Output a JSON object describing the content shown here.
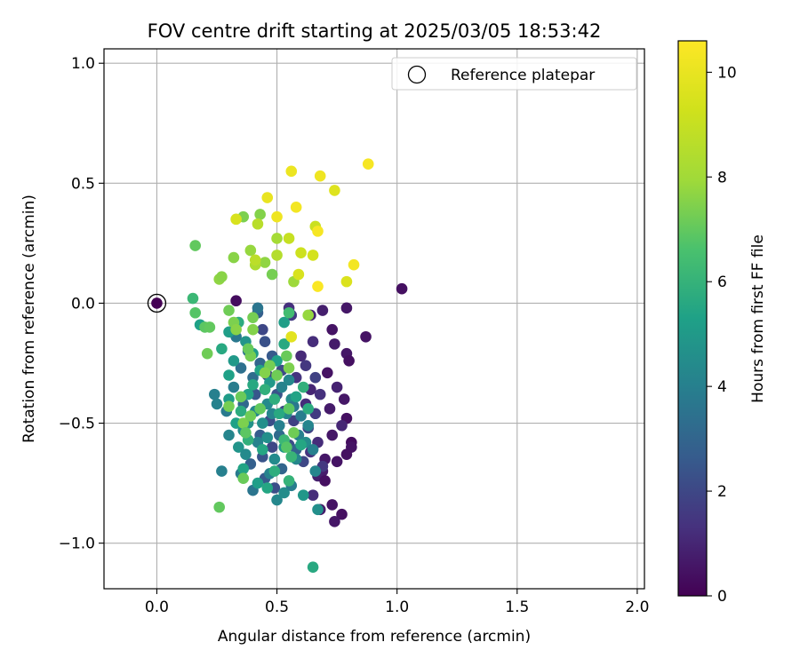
{
  "chart_data": {
    "type": "scatter",
    "title": "FOV centre drift starting at 2025/03/05 18:53:42",
    "xlabel": "Angular distance from reference (arcmin)",
    "ylabel": "Rotation from reference (arcmin)",
    "xlim": [
      -0.22,
      2.03
    ],
    "ylim": [
      -1.19,
      1.06
    ],
    "xticks": [
      0.0,
      0.5,
      1.0,
      1.5,
      2.0
    ],
    "xtick_labels": [
      "0.0",
      "0.5",
      "1.0",
      "1.5",
      "2.0"
    ],
    "yticks": [
      -1.0,
      -0.5,
      0.0,
      0.5,
      1.0
    ],
    "ytick_labels": [
      "−1.0",
      "−0.5",
      "0.0",
      "0.5",
      "1.0"
    ],
    "grid": true,
    "legend": {
      "position": "top-right",
      "entries": [
        "Reference platepar"
      ]
    },
    "reference_point": {
      "x": 0.0,
      "y": 0.0,
      "label": "Reference platepar"
    },
    "colorbar": {
      "label": "Hours from first FF file",
      "colormap": "viridis",
      "range": [
        0,
        10.6
      ],
      "ticks": [
        0,
        2,
        4,
        6,
        8,
        10
      ],
      "tick_labels": [
        "0",
        "2",
        "4",
        "6",
        "8",
        "10"
      ]
    },
    "points": [
      {
        "x": 0.33,
        "y": 0.01,
        "c": 0.3
      },
      {
        "x": 1.02,
        "y": 0.06,
        "c": 0.4
      },
      {
        "x": 0.79,
        "y": -0.02,
        "c": 0.6
      },
      {
        "x": 0.87,
        "y": -0.14,
        "c": 0.5
      },
      {
        "x": 0.69,
        "y": -0.03,
        "c": 0.8
      },
      {
        "x": 0.73,
        "y": -0.11,
        "c": 0.5
      },
      {
        "x": 0.74,
        "y": -0.17,
        "c": 0.7
      },
      {
        "x": 0.79,
        "y": -0.21,
        "c": 0.6
      },
      {
        "x": 0.8,
        "y": -0.24,
        "c": 0.4
      },
      {
        "x": 0.71,
        "y": -0.29,
        "c": 0.5
      },
      {
        "x": 0.75,
        "y": -0.35,
        "c": 0.9
      },
      {
        "x": 0.78,
        "y": -0.4,
        "c": 0.6
      },
      {
        "x": 0.72,
        "y": -0.44,
        "c": 0.7
      },
      {
        "x": 0.79,
        "y": -0.48,
        "c": 0.4
      },
      {
        "x": 0.77,
        "y": -0.51,
        "c": 1.0
      },
      {
        "x": 0.73,
        "y": -0.55,
        "c": 0.6
      },
      {
        "x": 0.81,
        "y": -0.58,
        "c": 0.3
      },
      {
        "x": 0.81,
        "y": -0.6,
        "c": 0.5
      },
      {
        "x": 0.79,
        "y": -0.63,
        "c": 0.4
      },
      {
        "x": 0.7,
        "y": -0.65,
        "c": 0.6
      },
      {
        "x": 0.75,
        "y": -0.66,
        "c": 0.5
      },
      {
        "x": 0.69,
        "y": -0.7,
        "c": 0.7
      },
      {
        "x": 0.67,
        "y": -0.72,
        "c": 0.8
      },
      {
        "x": 0.7,
        "y": -0.74,
        "c": 0.4
      },
      {
        "x": 0.65,
        "y": -0.8,
        "c": 1.2
      },
      {
        "x": 0.73,
        "y": -0.84,
        "c": 0.5
      },
      {
        "x": 0.77,
        "y": -0.88,
        "c": 0.4
      },
      {
        "x": 0.74,
        "y": -0.91,
        "c": 0.6
      },
      {
        "x": 0.68,
        "y": -0.86,
        "c": 0.7
      },
      {
        "x": 0.62,
        "y": -0.42,
        "c": 1.2
      },
      {
        "x": 0.64,
        "y": -0.36,
        "c": 1.0
      },
      {
        "x": 0.58,
        "y": -0.31,
        "c": 1.4
      },
      {
        "x": 0.6,
        "y": -0.22,
        "c": 1.1
      },
      {
        "x": 0.55,
        "y": -0.02,
        "c": 1.3
      },
      {
        "x": 0.56,
        "y": -0.05,
        "c": 1.6
      },
      {
        "x": 0.64,
        "y": -0.05,
        "c": 0.9
      },
      {
        "x": 0.65,
        "y": -0.16,
        "c": 1.2
      },
      {
        "x": 0.62,
        "y": -0.26,
        "c": 1.5
      },
      {
        "x": 0.66,
        "y": -0.31,
        "c": 1.8
      },
      {
        "x": 0.68,
        "y": -0.38,
        "c": 1.3
      },
      {
        "x": 0.66,
        "y": -0.46,
        "c": 1.6
      },
      {
        "x": 0.63,
        "y": -0.52,
        "c": 1.9
      },
      {
        "x": 0.67,
        "y": -0.58,
        "c": 1.2
      },
      {
        "x": 0.64,
        "y": -0.62,
        "c": 1.4
      },
      {
        "x": 0.61,
        "y": -0.66,
        "c": 2.0
      },
      {
        "x": 0.69,
        "y": -0.68,
        "c": 1.5
      },
      {
        "x": 0.57,
        "y": -0.49,
        "c": 1.8
      },
      {
        "x": 0.55,
        "y": -0.59,
        "c": 2.2
      },
      {
        "x": 0.53,
        "y": -0.45,
        "c": 2.0
      },
      {
        "x": 0.5,
        "y": -0.38,
        "c": 2.4
      },
      {
        "x": 0.52,
        "y": -0.28,
        "c": 2.1
      },
      {
        "x": 0.48,
        "y": -0.22,
        "c": 2.6
      },
      {
        "x": 0.45,
        "y": -0.16,
        "c": 2.3
      },
      {
        "x": 0.44,
        "y": -0.11,
        "c": 2.0
      },
      {
        "x": 0.42,
        "y": -0.04,
        "c": 2.8
      },
      {
        "x": 0.46,
        "y": -0.3,
        "c": 1.9
      },
      {
        "x": 0.41,
        "y": -0.38,
        "c": 2.5
      },
      {
        "x": 0.47,
        "y": -0.49,
        "c": 2.2
      },
      {
        "x": 0.43,
        "y": -0.55,
        "c": 2.7
      },
      {
        "x": 0.48,
        "y": -0.6,
        "c": 2.0
      },
      {
        "x": 0.44,
        "y": -0.64,
        "c": 2.4
      },
      {
        "x": 0.39,
        "y": -0.67,
        "c": 2.8
      },
      {
        "x": 0.45,
        "y": -0.73,
        "c": 2.6
      },
      {
        "x": 0.49,
        "y": -0.77,
        "c": 2.2
      },
      {
        "x": 0.58,
        "y": -0.61,
        "c": 2.9
      },
      {
        "x": 0.52,
        "y": -0.69,
        "c": 3.0
      },
      {
        "x": 0.51,
        "y": -0.55,
        "c": 3.2
      },
      {
        "x": 0.36,
        "y": -0.42,
        "c": 3.1
      },
      {
        "x": 0.4,
        "y": -0.31,
        "c": 3.3
      },
      {
        "x": 0.43,
        "y": -0.25,
        "c": 3.0
      },
      {
        "x": 0.38,
        "y": -0.2,
        "c": 3.5
      },
      {
        "x": 0.42,
        "y": -0.02,
        "c": 3.6
      },
      {
        "x": 0.33,
        "y": -0.14,
        "c": 3.7
      },
      {
        "x": 0.35,
        "y": -0.27,
        "c": 3.4
      },
      {
        "x": 0.32,
        "y": -0.35,
        "c": 3.9
      },
      {
        "x": 0.29,
        "y": -0.45,
        "c": 3.8
      },
      {
        "x": 0.25,
        "y": -0.42,
        "c": 4.1
      },
      {
        "x": 0.24,
        "y": -0.38,
        "c": 4.0
      },
      {
        "x": 0.3,
        "y": -0.55,
        "c": 4.2
      },
      {
        "x": 0.27,
        "y": -0.7,
        "c": 4.0
      },
      {
        "x": 0.35,
        "y": -0.71,
        "c": 3.8
      },
      {
        "x": 0.4,
        "y": -0.78,
        "c": 3.6
      },
      {
        "x": 0.47,
        "y": -0.71,
        "c": 4.1
      },
      {
        "x": 0.5,
        "y": -0.82,
        "c": 4.3
      },
      {
        "x": 0.53,
        "y": -0.79,
        "c": 4.5
      },
      {
        "x": 0.56,
        "y": -0.76,
        "c": 3.9
      },
      {
        "x": 0.49,
        "y": -0.65,
        "c": 4.4
      },
      {
        "x": 0.51,
        "y": -0.51,
        "c": 4.0
      },
      {
        "x": 0.54,
        "y": -0.46,
        "c": 4.2
      },
      {
        "x": 0.56,
        "y": -0.4,
        "c": 4.5
      },
      {
        "x": 0.52,
        "y": -0.35,
        "c": 4.1
      },
      {
        "x": 0.55,
        "y": -0.32,
        "c": 4.3
      },
      {
        "x": 0.57,
        "y": -0.43,
        "c": 3.7
      },
      {
        "x": 0.6,
        "y": -0.47,
        "c": 3.9
      },
      {
        "x": 0.63,
        "y": -0.51,
        "c": 4.2
      },
      {
        "x": 0.59,
        "y": -0.55,
        "c": 4.0
      },
      {
        "x": 0.46,
        "y": -0.42,
        "c": 4.4
      },
      {
        "x": 0.48,
        "y": -0.46,
        "c": 4.2
      },
      {
        "x": 0.44,
        "y": -0.5,
        "c": 4.6
      },
      {
        "x": 0.41,
        "y": -0.45,
        "c": 4.3
      },
      {
        "x": 0.38,
        "y": -0.5,
        "c": 4.7
      },
      {
        "x": 0.36,
        "y": -0.53,
        "c": 4.5
      },
      {
        "x": 0.34,
        "y": -0.6,
        "c": 4.8
      },
      {
        "x": 0.37,
        "y": -0.63,
        "c": 4.4
      },
      {
        "x": 0.42,
        "y": -0.58,
        "c": 4.1
      },
      {
        "x": 0.46,
        "y": -0.56,
        "c": 4.6
      },
      {
        "x": 0.53,
        "y": -0.6,
        "c": 4.9
      },
      {
        "x": 0.58,
        "y": -0.65,
        "c": 4.3
      },
      {
        "x": 0.62,
        "y": -0.58,
        "c": 4.5
      },
      {
        "x": 0.65,
        "y": -0.61,
        "c": 4.0
      },
      {
        "x": 0.66,
        "y": -0.7,
        "c": 4.2
      },
      {
        "x": 0.67,
        "y": -0.86,
        "c": 4.6
      },
      {
        "x": 0.61,
        "y": -0.8,
        "c": 4.9
      },
      {
        "x": 0.65,
        "y": -1.1,
        "c": 5.6
      },
      {
        "x": 0.42,
        "y": -0.75,
        "c": 5.2
      },
      {
        "x": 0.46,
        "y": -0.77,
        "c": 5.5
      },
      {
        "x": 0.36,
        "y": -0.69,
        "c": 5.4
      },
      {
        "x": 0.3,
        "y": -0.4,
        "c": 5.1
      },
      {
        "x": 0.3,
        "y": -0.3,
        "c": 5.3
      },
      {
        "x": 0.32,
        "y": -0.24,
        "c": 5.0
      },
      {
        "x": 0.27,
        "y": -0.19,
        "c": 5.6
      },
      {
        "x": 0.3,
        "y": -0.12,
        "c": 5.2
      },
      {
        "x": 0.34,
        "y": -0.08,
        "c": 5.7
      },
      {
        "x": 0.37,
        "y": -0.16,
        "c": 4.8
      },
      {
        "x": 0.4,
        "y": -0.21,
        "c": 5.1
      },
      {
        "x": 0.43,
        "y": -0.28,
        "c": 5.4
      },
      {
        "x": 0.47,
        "y": -0.33,
        "c": 5.0
      },
      {
        "x": 0.5,
        "y": -0.24,
        "c": 5.3
      },
      {
        "x": 0.53,
        "y": -0.17,
        "c": 5.6
      },
      {
        "x": 0.53,
        "y": -0.08,
        "c": 5.2
      },
      {
        "x": 0.55,
        "y": -0.04,
        "c": 6.4
      },
      {
        "x": 0.55,
        "y": -0.44,
        "c": 6.1
      },
      {
        "x": 0.49,
        "y": -0.4,
        "c": 5.8
      },
      {
        "x": 0.45,
        "y": -0.36,
        "c": 5.9
      },
      {
        "x": 0.4,
        "y": -0.34,
        "c": 5.6
      },
      {
        "x": 0.38,
        "y": -0.38,
        "c": 5.4
      },
      {
        "x": 0.35,
        "y": -0.45,
        "c": 5.7
      },
      {
        "x": 0.33,
        "y": -0.5,
        "c": 5.3
      },
      {
        "x": 0.38,
        "y": -0.57,
        "c": 5.9
      },
      {
        "x": 0.44,
        "y": -0.61,
        "c": 5.5
      },
      {
        "x": 0.49,
        "y": -0.7,
        "c": 5.8
      },
      {
        "x": 0.55,
        "y": -0.74,
        "c": 6.0
      },
      {
        "x": 0.53,
        "y": -0.57,
        "c": 6.2
      },
      {
        "x": 0.51,
        "y": -0.46,
        "c": 5.6
      },
      {
        "x": 0.58,
        "y": -0.39,
        "c": 5.4
      },
      {
        "x": 0.61,
        "y": -0.35,
        "c": 5.9
      },
      {
        "x": 0.63,
        "y": -0.44,
        "c": 5.7
      },
      {
        "x": 0.6,
        "y": -0.59,
        "c": 5.5
      },
      {
        "x": 0.56,
        "y": -0.64,
        "c": 6.1
      },
      {
        "x": 0.15,
        "y": 0.02,
        "c": 6.2
      },
      {
        "x": 0.16,
        "y": -0.04,
        "c": 6.8
      },
      {
        "x": 0.18,
        "y": -0.09,
        "c": 5.3
      },
      {
        "x": 0.2,
        "y": -0.1,
        "c": 6.9
      },
      {
        "x": 0.22,
        "y": -0.1,
        "c": 7.0
      },
      {
        "x": 0.21,
        "y": -0.21,
        "c": 7.2
      },
      {
        "x": 0.26,
        "y": -0.85,
        "c": 7.0
      },
      {
        "x": 0.3,
        "y": -0.43,
        "c": 7.3
      },
      {
        "x": 0.35,
        "y": -0.39,
        "c": 7.1
      },
      {
        "x": 0.36,
        "y": -0.5,
        "c": 7.4
      },
      {
        "x": 0.36,
        "y": -0.73,
        "c": 7.1
      },
      {
        "x": 0.37,
        "y": -0.54,
        "c": 6.9
      },
      {
        "x": 0.39,
        "y": -0.47,
        "c": 7.2
      },
      {
        "x": 0.43,
        "y": -0.44,
        "c": 7.0
      },
      {
        "x": 0.47,
        "y": -0.26,
        "c": 7.3
      },
      {
        "x": 0.45,
        "y": -0.29,
        "c": 7.5
      },
      {
        "x": 0.5,
        "y": -0.3,
        "c": 7.2
      },
      {
        "x": 0.54,
        "y": -0.22,
        "c": 7.1
      },
      {
        "x": 0.55,
        "y": -0.27,
        "c": 7.4
      },
      {
        "x": 0.55,
        "y": -0.44,
        "c": 6.9
      },
      {
        "x": 0.57,
        "y": -0.54,
        "c": 7.2
      },
      {
        "x": 0.54,
        "y": -0.6,
        "c": 6.8
      },
      {
        "x": 0.39,
        "y": -0.22,
        "c": 7.3
      },
      {
        "x": 0.38,
        "y": -0.19,
        "c": 7.1
      },
      {
        "x": 0.32,
        "y": -0.08,
        "c": 7.4
      },
      {
        "x": 0.3,
        "y": -0.03,
        "c": 7.2
      },
      {
        "x": 0.4,
        "y": -0.06,
        "c": 7.3
      },
      {
        "x": 0.4,
        "y": -0.11,
        "c": 7.5
      },
      {
        "x": 0.33,
        "y": -0.11,
        "c": 7.6
      },
      {
        "x": 0.16,
        "y": 0.24,
        "c": 7.0
      },
      {
        "x": 0.32,
        "y": 0.19,
        "c": 7.6
      },
      {
        "x": 0.26,
        "y": 0.1,
        "c": 7.7
      },
      {
        "x": 0.27,
        "y": 0.11,
        "c": 7.6
      },
      {
        "x": 0.39,
        "y": 0.22,
        "c": 7.8
      },
      {
        "x": 0.43,
        "y": 0.37,
        "c": 7.5
      },
      {
        "x": 0.36,
        "y": 0.36,
        "c": 7.4
      },
      {
        "x": 0.45,
        "y": 0.17,
        "c": 7.7
      },
      {
        "x": 0.48,
        "y": 0.12,
        "c": 7.3
      },
      {
        "x": 0.57,
        "y": 0.09,
        "c": 7.9
      },
      {
        "x": 0.63,
        "y": -0.05,
        "c": 7.8
      },
      {
        "x": 0.5,
        "y": 0.27,
        "c": 8.1
      },
      {
        "x": 0.5,
        "y": 0.2,
        "c": 8.5
      },
      {
        "x": 0.41,
        "y": 0.16,
        "c": 8.3
      },
      {
        "x": 0.41,
        "y": 0.18,
        "c": 8.7
      },
      {
        "x": 0.42,
        "y": 0.33,
        "c": 8.6
      },
      {
        "x": 0.55,
        "y": 0.27,
        "c": 9.0
      },
      {
        "x": 0.6,
        "y": 0.21,
        "c": 9.2
      },
      {
        "x": 0.65,
        "y": 0.2,
        "c": 9.4
      },
      {
        "x": 0.66,
        "y": 0.32,
        "c": 9.1
      },
      {
        "x": 0.59,
        "y": 0.12,
        "c": 9.5
      },
      {
        "x": 0.79,
        "y": 0.09,
        "c": 9.6
      },
      {
        "x": 0.74,
        "y": 0.47,
        "c": 9.7
      },
      {
        "x": 0.33,
        "y": 0.35,
        "c": 9.5
      },
      {
        "x": 0.56,
        "y": -0.14,
        "c": 9.8
      },
      {
        "x": 0.46,
        "y": 0.44,
        "c": 10.0
      },
      {
        "x": 0.5,
        "y": 0.36,
        "c": 10.2
      },
      {
        "x": 0.56,
        "y": 0.55,
        "c": 10.1
      },
      {
        "x": 0.58,
        "y": 0.4,
        "c": 10.3
      },
      {
        "x": 0.68,
        "y": 0.53,
        "c": 10.2
      },
      {
        "x": 0.67,
        "y": 0.3,
        "c": 10.4
      },
      {
        "x": 0.67,
        "y": 0.07,
        "c": 10.5
      },
      {
        "x": 0.82,
        "y": 0.16,
        "c": 10.3
      },
      {
        "x": 0.88,
        "y": 0.58,
        "c": 10.4
      }
    ]
  }
}
